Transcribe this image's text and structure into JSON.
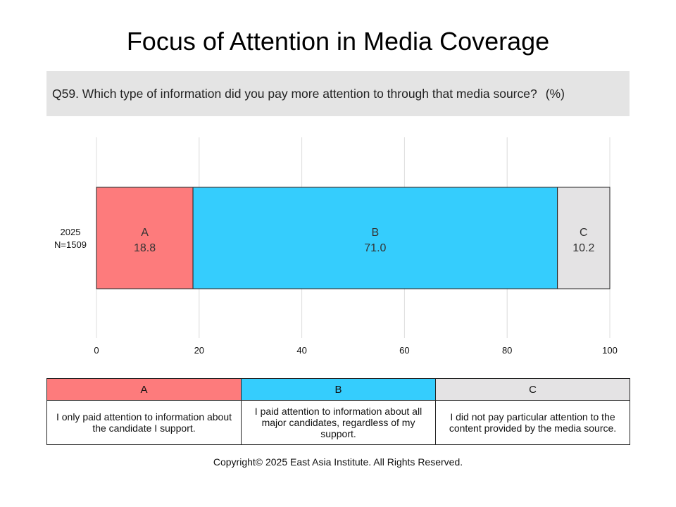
{
  "title": "Focus of Attention in Media Coverage",
  "question": {
    "text": "Q59. Which type of information did you pay more attention to through that media source?",
    "unit": "(%)"
  },
  "chart_data": {
    "type": "bar",
    "orientation": "horizontal",
    "stacked": true,
    "categories": [
      {
        "year": "2025",
        "n": "N=1509"
      }
    ],
    "series": [
      {
        "name": "A",
        "values": [
          18.8
        ],
        "color": "#fd7b7c"
      },
      {
        "name": "B",
        "values": [
          71.0
        ],
        "color": "#35cdfd"
      },
      {
        "name": "C",
        "values": [
          10.2
        ],
        "color": "#e4e3e4"
      }
    ],
    "xlim": [
      0,
      100
    ],
    "xticks": [
      "0",
      "20",
      "40",
      "60",
      "80",
      "100"
    ],
    "grid": true
  },
  "legend": {
    "columns": [
      {
        "label": "A",
        "color": "#fd7b7c",
        "description": "I only paid attention to information about the candidate I support."
      },
      {
        "label": "B",
        "color": "#35cdfd",
        "description": "I paid attention to information about all major candidates, regardless of my support."
      },
      {
        "label": "C",
        "color": "#e4e3e4",
        "description": "I did not pay particular attention to the content provided by the media source."
      }
    ]
  },
  "copyright": "Copyright© 2025 East Asia Institute. All Rights Reserved."
}
